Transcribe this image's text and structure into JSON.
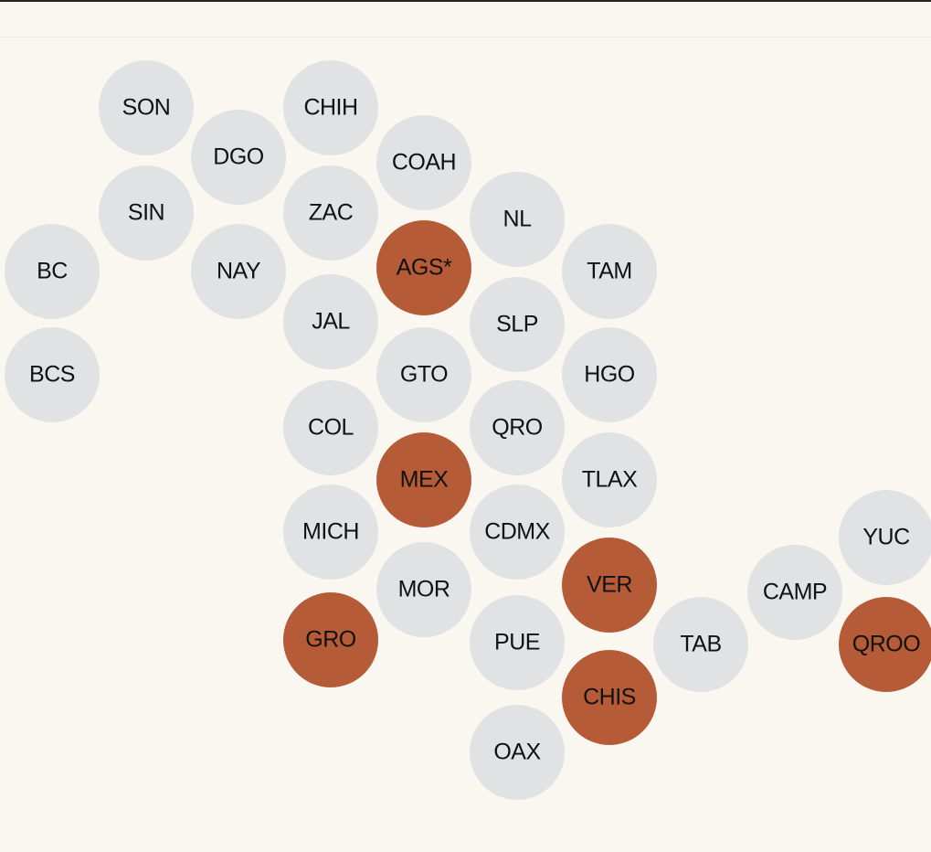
{
  "map": {
    "colors": {
      "default": "#e1e2e4",
      "highlight": "#b65b37",
      "background": "#faf7f0"
    },
    "nodes": [
      {
        "label": "SON",
        "highlighted": false
      },
      {
        "label": "CHIH",
        "highlighted": false
      },
      {
        "label": "DGO",
        "highlighted": false
      },
      {
        "label": "COAH",
        "highlighted": false
      },
      {
        "label": "SIN",
        "highlighted": false
      },
      {
        "label": "ZAC",
        "highlighted": false
      },
      {
        "label": "NL",
        "highlighted": false
      },
      {
        "label": "BC",
        "highlighted": false
      },
      {
        "label": "NAY",
        "highlighted": false
      },
      {
        "label": "AGS*",
        "highlighted": true
      },
      {
        "label": "TAM",
        "highlighted": false
      },
      {
        "label": "JAL",
        "highlighted": false
      },
      {
        "label": "SLP",
        "highlighted": false
      },
      {
        "label": "BCS",
        "highlighted": false
      },
      {
        "label": "GTO",
        "highlighted": false
      },
      {
        "label": "HGO",
        "highlighted": false
      },
      {
        "label": "COL",
        "highlighted": false
      },
      {
        "label": "QRO",
        "highlighted": false
      },
      {
        "label": "MEX",
        "highlighted": true
      },
      {
        "label": "TLAX",
        "highlighted": false
      },
      {
        "label": "MICH",
        "highlighted": false
      },
      {
        "label": "CDMX",
        "highlighted": false
      },
      {
        "label": "YUC",
        "highlighted": false
      },
      {
        "label": "MOR",
        "highlighted": false
      },
      {
        "label": "VER",
        "highlighted": true
      },
      {
        "label": "CAMP",
        "highlighted": false
      },
      {
        "label": "GRO",
        "highlighted": true
      },
      {
        "label": "PUE",
        "highlighted": false
      },
      {
        "label": "TAB",
        "highlighted": false
      },
      {
        "label": "QROO",
        "highlighted": true
      },
      {
        "label": "CHIS",
        "highlighted": true
      },
      {
        "label": "OAX",
        "highlighted": false
      }
    ]
  }
}
